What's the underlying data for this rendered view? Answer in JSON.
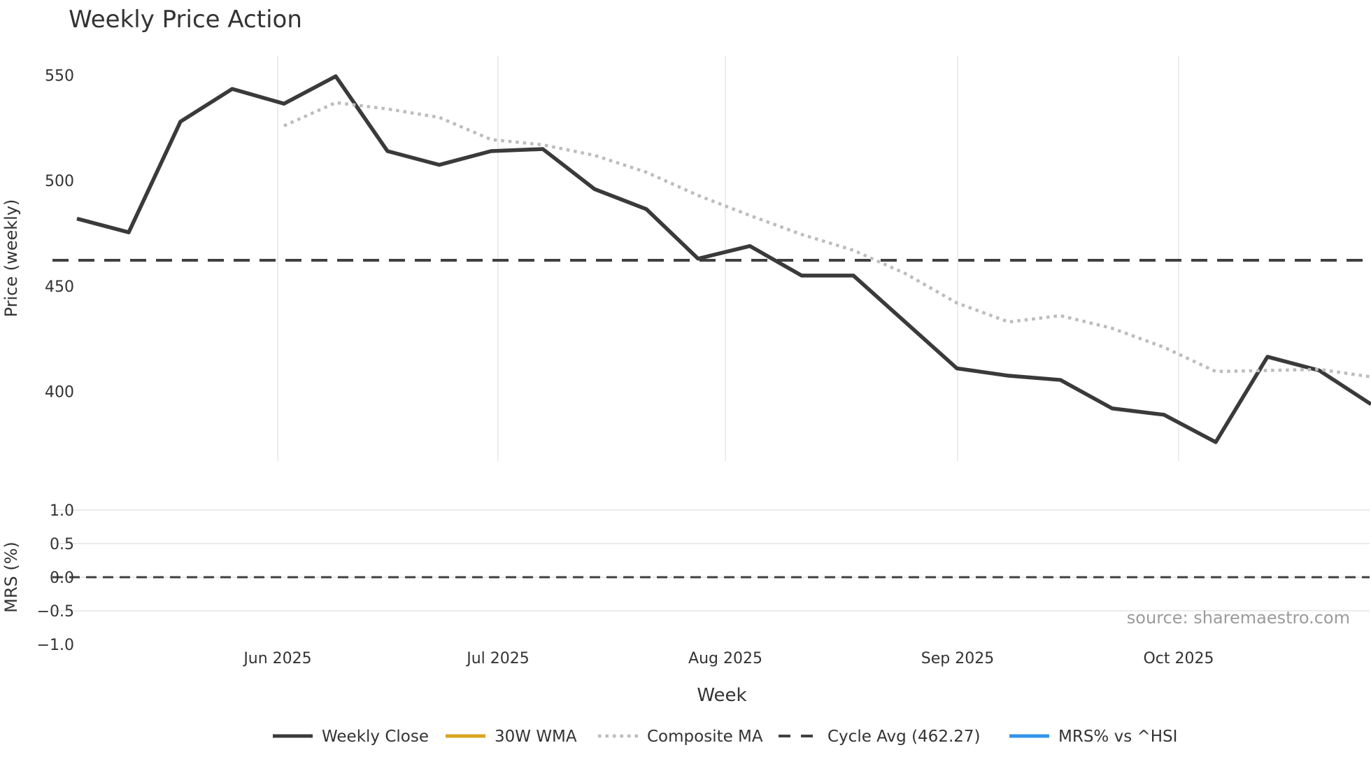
{
  "figure": {
    "title": "Weekly Price Action",
    "source": "source: sharemaestro.com"
  },
  "price_panel": {
    "ylabel": "Price (weekly)",
    "yticks": [
      550,
      500,
      450,
      400
    ]
  },
  "mrs_panel": {
    "ylabel": "MRS (%)",
    "yticks": [
      {
        "label": "1.0",
        "value": 1.0
      },
      {
        "label": "0.5",
        "value": 0.5
      },
      {
        "label": "0.0",
        "value": 0.0
      },
      {
        "label": "−0.5",
        "value": -0.5
      },
      {
        "label": "−1.0",
        "value": -1.0
      }
    ],
    "zero_line": 0.0
  },
  "xaxis": {
    "label": "Week",
    "ticks": [
      "Jun 2025",
      "Jul 2025",
      "Aug 2025",
      "Sep 2025",
      "Oct 2025"
    ]
  },
  "legend": [
    {
      "label": "Weekly Close",
      "color": "#3a3a3a",
      "style": "solid"
    },
    {
      "label": "30W WMA",
      "color": "#d9a521",
      "style": "solid"
    },
    {
      "label": "Composite MA",
      "color": "#bcbcbc",
      "style": "dotted"
    },
    {
      "label": "Cycle Avg (462.27)",
      "color": "#404040",
      "style": "dashed"
    },
    {
      "label": "MRS% vs ^HSI",
      "color": "#3094ec",
      "style": "solid"
    }
  ],
  "colors": {
    "grid": "#eaeaf0",
    "text": "#333333",
    "source_text": "#9b9b9b"
  },
  "chart_data": {
    "type": "line",
    "title": "Weekly Price Action",
    "xlabel": "Week",
    "ylabel_top": "Price (weekly)",
    "ylabel_bottom": "MRS (%)",
    "x_tick_labels": [
      "Jun 2025",
      "Jul 2025",
      "Aug 2025",
      "Sep 2025",
      "Oct 2025"
    ],
    "price_ylim": [
      367,
      558
    ],
    "mrs_ylim": [
      -1.1,
      1.1
    ],
    "cycle_avg": 462.27,
    "weeks_total": 26,
    "series": [
      {
        "name": "Weekly Close",
        "color": "#3a3a3a",
        "style": "solid",
        "start_week": 1,
        "values": [
          482,
          475.5,
          528,
          543.5,
          536.5,
          549.5,
          514,
          507.5,
          514,
          515,
          496,
          486.5,
          463,
          469,
          455,
          455,
          433,
          411,
          407.5,
          405.5,
          392,
          389,
          376,
          416.5,
          410,
          394
        ]
      },
      {
        "name": "30W WMA",
        "color": "#d9a521",
        "style": "solid",
        "start_week": 1,
        "values": []
      },
      {
        "name": "Composite MA",
        "color": "#bcbcbc",
        "style": "dotted",
        "start_week": 5,
        "values": [
          526,
          537,
          534,
          530,
          519.5,
          517,
          512,
          504,
          493,
          483.5,
          474.5,
          467,
          456,
          442,
          433,
          436,
          430,
          421,
          409.5,
          410,
          410.5,
          407
        ]
      },
      {
        "name": "Cycle Avg",
        "color": "#404040",
        "style": "dashed",
        "constant": 462.27
      },
      {
        "name": "MRS% vs ^HSI",
        "color": "#3094ec",
        "style": "solid",
        "panel": "mrs",
        "values": []
      }
    ]
  }
}
